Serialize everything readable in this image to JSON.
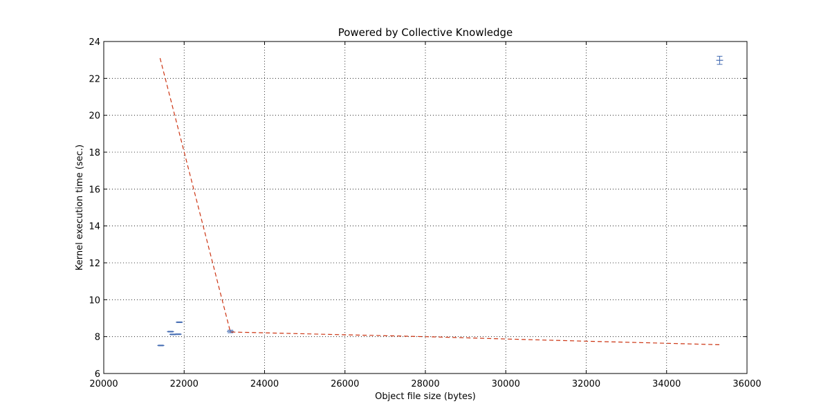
{
  "chart_data": {
    "type": "scatter",
    "title": "Powered by Collective Knowledge",
    "xlabel": "Object file size (bytes)",
    "ylabel": "Kernel execution time (sec.)",
    "xlim": [
      20000,
      36000
    ],
    "ylim": [
      6,
      24
    ],
    "xticks": [
      20000,
      22000,
      24000,
      26000,
      28000,
      30000,
      32000,
      34000,
      36000
    ],
    "yticks": [
      6,
      8,
      10,
      12,
      14,
      16,
      18,
      20,
      22,
      24
    ],
    "grid": true,
    "legend": "none",
    "series": [
      {
        "kind": "errorbar-points",
        "color": "#4169b1",
        "points": [
          {
            "x": 21420,
            "y": 7.52,
            "err": 0.02
          },
          {
            "x": 21660,
            "y": 8.27,
            "err": 0.02
          },
          {
            "x": 21720,
            "y": 8.12,
            "err": 0.02
          },
          {
            "x": 21850,
            "y": 8.13,
            "err": 0.02
          },
          {
            "x": 21880,
            "y": 8.78,
            "err": 0.02
          },
          {
            "x": 23150,
            "y": 8.28,
            "err": 0.07
          },
          {
            "x": 35320,
            "y": 22.98,
            "err": 0.22
          }
        ]
      },
      {
        "kind": "dashed-line",
        "color": "#cc3311",
        "points": [
          {
            "x": 21400,
            "y": 23.1
          },
          {
            "x": 23150,
            "y": 8.25
          },
          {
            "x": 26000,
            "y": 8.1
          },
          {
            "x": 28000,
            "y": 8.0
          },
          {
            "x": 30000,
            "y": 7.87
          },
          {
            "x": 32000,
            "y": 7.75
          },
          {
            "x": 34000,
            "y": 7.64
          },
          {
            "x": 35320,
            "y": 7.56
          }
        ]
      }
    ]
  }
}
